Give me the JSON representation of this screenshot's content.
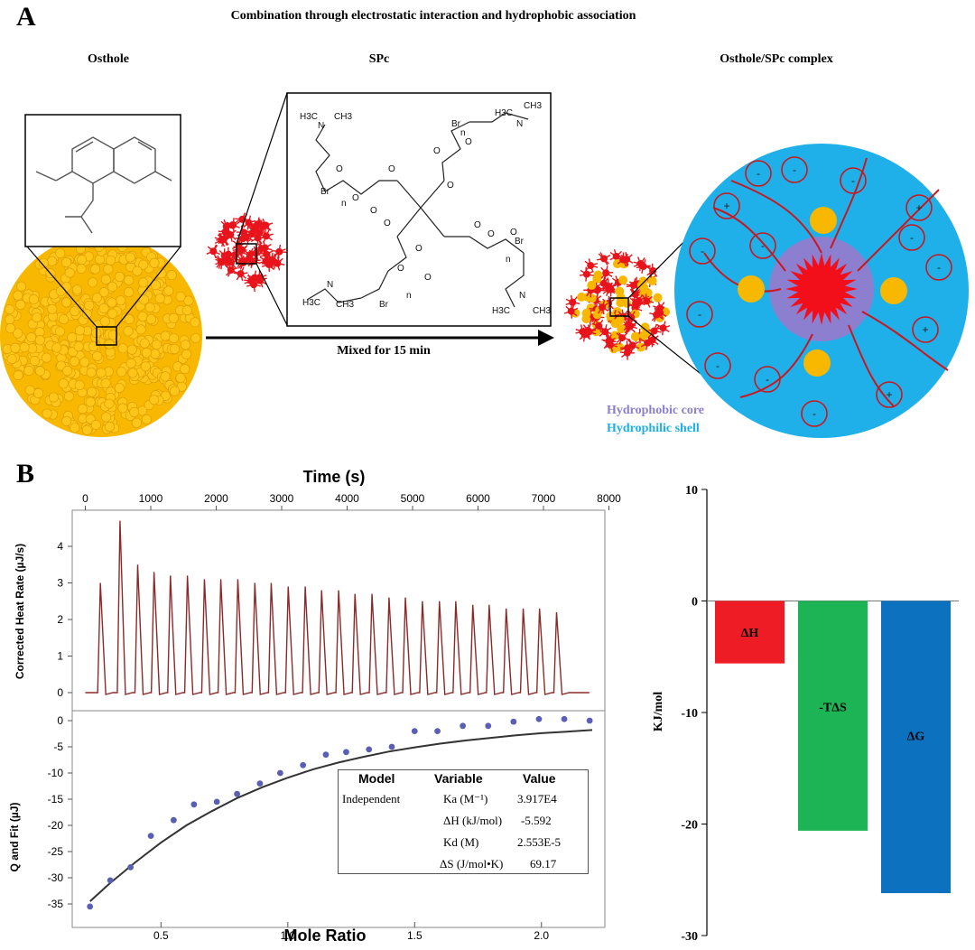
{
  "panel_a": {
    "label": "A",
    "title": "Combination through electrostatic interaction and hydrophobic association",
    "osthole_label": "Osthole",
    "spc_label": "SPc",
    "complex_label": "Osthole/SPc complex",
    "arrow_label": "Mixed for 15 min",
    "legend": {
      "core": "Hydrophobic core",
      "shell": "Hydrophilic shell"
    },
    "colors": {
      "osthole": "#f8b800",
      "spc": "#e8141c",
      "core": "#8d7fd0",
      "shell": "#1fb0ea",
      "charge_ring": "#c8181e"
    },
    "charges": [
      "+",
      "-",
      "-",
      "-",
      "+",
      "-",
      "-",
      "-",
      "+",
      "-",
      "-",
      "-",
      "+",
      "-",
      "-"
    ],
    "chem_labels": [
      "O",
      "O",
      "O",
      "O",
      "O",
      "O",
      "O",
      "O",
      "O",
      "O",
      "O",
      "O",
      "O",
      "O",
      "N",
      "N",
      "N",
      "N",
      "H3C",
      "CH3",
      "H3C",
      "CH3",
      "H3C",
      "CH3",
      "H3C",
      "CH3",
      "Br",
      "Br",
      "Br",
      "Br",
      "n",
      "n",
      "n",
      "n"
    ]
  },
  "panel_b": {
    "label": "B",
    "itc": {
      "top_xlabel": "Time (s)",
      "top_ylabel": "Corrected Heat Rate (µJ/s)",
      "time_ticks": [
        "0",
        "1000",
        "2000",
        "3000",
        "4000",
        "5000",
        "6000",
        "7000",
        "8000"
      ],
      "heat_ticks": [
        "4",
        "3",
        "2",
        "1",
        "0"
      ],
      "bottom_xlabel": "Mole Ratio",
      "bottom_ylabel": "Q and Fit (µJ)",
      "ratio_ticks": [
        "0.5",
        "1.0",
        "1.5",
        "2.0"
      ],
      "q_ticks": [
        "0",
        "-5",
        "-10",
        "-15",
        "-20",
        "-25",
        "-30",
        "-35"
      ],
      "peak_times": [
        230,
        530,
        800,
        1050,
        1300,
        1560,
        1820,
        2070,
        2330,
        2590,
        2840,
        3100,
        3360,
        3610,
        3870,
        4120,
        4380,
        4640,
        4890,
        5150,
        5410,
        5660,
        5920,
        6170,
        6430,
        6690,
        6940,
        7200
      ],
      "peak_heights": [
        3.0,
        4.7,
        3.5,
        3.3,
        3.2,
        3.2,
        3.1,
        3.1,
        3.1,
        3.0,
        3.0,
        2.9,
        2.9,
        2.8,
        2.8,
        2.7,
        2.7,
        2.6,
        2.6,
        2.5,
        2.5,
        2.5,
        2.4,
        2.4,
        2.3,
        2.3,
        2.3,
        2.2
      ],
      "points_x": [
        0.22,
        0.3,
        0.38,
        0.46,
        0.55,
        0.63,
        0.72,
        0.8,
        0.89,
        0.97,
        1.06,
        1.15,
        1.23,
        1.32,
        1.41,
        1.5,
        1.59,
        1.69,
        1.79,
        1.89,
        1.99,
        2.09,
        2.19
      ],
      "points_y": [
        -35.5,
        -30.5,
        -28,
        -22,
        -19,
        -16,
        -15.5,
        -14,
        -12,
        -10,
        -8.5,
        -6.5,
        -6,
        -5.5,
        -5,
        -2,
        -2,
        -1,
        -1,
        -0.2,
        0.3,
        0.3,
        0
      ],
      "fit_x": [
        0.22,
        0.3,
        0.4,
        0.5,
        0.6,
        0.7,
        0.8,
        0.9,
        1.0,
        1.1,
        1.2,
        1.3,
        1.4,
        1.5,
        1.6,
        1.7,
        1.8,
        1.9,
        2.0,
        2.1,
        2.2
      ],
      "fit_y": [
        -34.5,
        -31,
        -27,
        -23.3,
        -20,
        -17.3,
        -14.8,
        -12.7,
        -10.9,
        -9.3,
        -8,
        -6.9,
        -5.9,
        -5.1,
        -4.4,
        -3.8,
        -3.3,
        -2.8,
        -2.4,
        -2.1,
        -1.8
      ],
      "table": {
        "headers": [
          "Model",
          "Variable",
          "Value"
        ],
        "model": "Independent",
        "rows": [
          {
            "variable": "Ka (M⁻¹)",
            "value": "3.917E4"
          },
          {
            "variable": "ΔH (kJ/mol)",
            "value": "-5.592"
          },
          {
            "variable": "Kd (M)",
            "value": "2.553E-5"
          },
          {
            "variable": "ΔS (J/mol•K)",
            "value": "69.17"
          }
        ]
      }
    }
  },
  "chart_data": {
    "type": "bar",
    "categories": [
      "ΔH",
      "-TΔS",
      "ΔG"
    ],
    "values": [
      -5.6,
      -20.6,
      -26.2
    ],
    "ylabel": "KJ/mol",
    "ylim": [
      -30,
      10
    ],
    "yticks": [
      "10",
      "0",
      "-10",
      "-20",
      "-30"
    ],
    "colors": [
      "#ee1c24",
      "#1db456",
      "#0c72c0"
    ]
  }
}
